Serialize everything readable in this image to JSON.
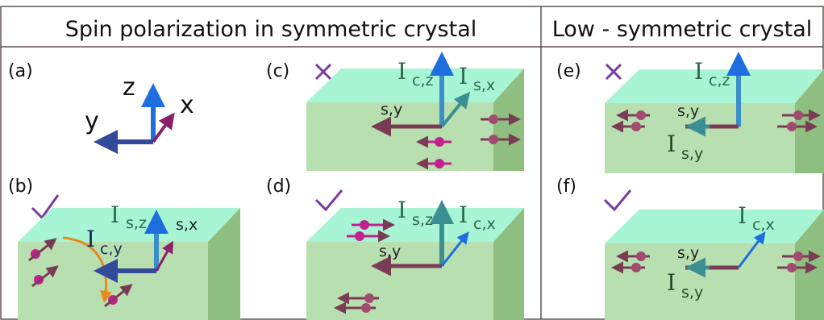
{
  "headers": {
    "left": "Spin polarization in symmetric crystal",
    "right": "Low - symmetric crystal"
  },
  "panels": {
    "a": {
      "label": "(a)",
      "axes": {
        "z": "z",
        "x": "x",
        "y": "y"
      }
    },
    "b": {
      "label": "(b)",
      "mark": "check",
      "labels": {
        "I_main": "I",
        "sz": "s,z",
        "cy": "c,y",
        "sx": "s,x"
      }
    },
    "c": {
      "label": "(c)",
      "mark": "cross",
      "labels": {
        "I1": "I",
        "cz": "c,z",
        "I2": "I",
        "sx": "s,x",
        "sy": "s,y"
      }
    },
    "d": {
      "label": "(d)",
      "mark": "check",
      "labels": {
        "I1": "I",
        "sz": "s,z",
        "I2": "I",
        "cx": "c,x",
        "sy": "s,y"
      }
    },
    "e": {
      "label": "(e)",
      "mark": "cross",
      "labels": {
        "I1": "I",
        "cz": "c,z",
        "sy": "s,y",
        "I2": "I",
        "sy2": "s,y"
      }
    },
    "f": {
      "label": "(f)",
      "mark": "check",
      "labels": {
        "I1": "I",
        "cx": "c,x",
        "sy": "s,y",
        "I2": "I",
        "sy2": "s,y"
      }
    }
  },
  "colors": {
    "top_face": "#a8f5d5",
    "front_face": "#b8dfb0",
    "side_face": "#8fbf80",
    "z_arrow": "#1f6ee0",
    "y_arrow": "#334a9a",
    "x_arrow": "#8a1f6a",
    "spin": "#7a3c55",
    "particle": "#c21f8f",
    "mark": "#7a3a9e",
    "label_green": "#2a6a4a"
  }
}
